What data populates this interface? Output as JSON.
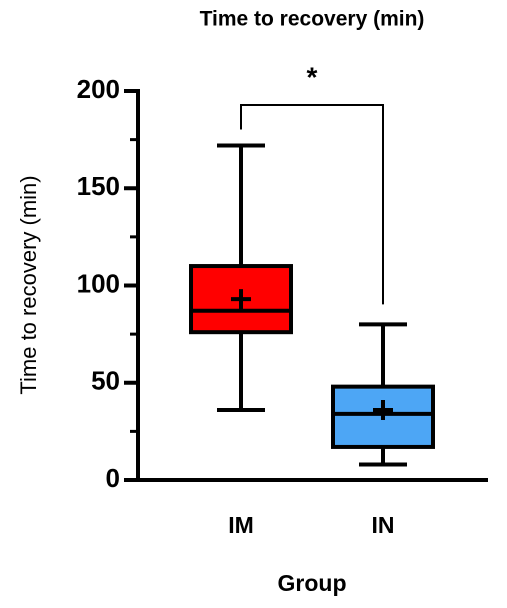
{
  "chart_data": {
    "type": "box",
    "title": "Time to recovery (min)",
    "x_label": "Group",
    "y_label": "Time to recovery (min)",
    "categories": [
      "IM",
      "IN"
    ],
    "boxes": [
      {
        "color": "#ff0000",
        "min": 36,
        "q1": 76,
        "median": 87,
        "q3": 110,
        "max": 172,
        "mean": 93
      },
      {
        "color": "#4da6f5",
        "min": 8,
        "q1": 17,
        "median": 34,
        "q3": 48,
        "max": 80,
        "mean": 36
      }
    ],
    "ylim": [
      0,
      200
    ],
    "yticks": [
      0,
      50,
      100,
      150,
      200
    ],
    "yminorticks": [
      25,
      75,
      125,
      175
    ],
    "significance": "*"
  }
}
